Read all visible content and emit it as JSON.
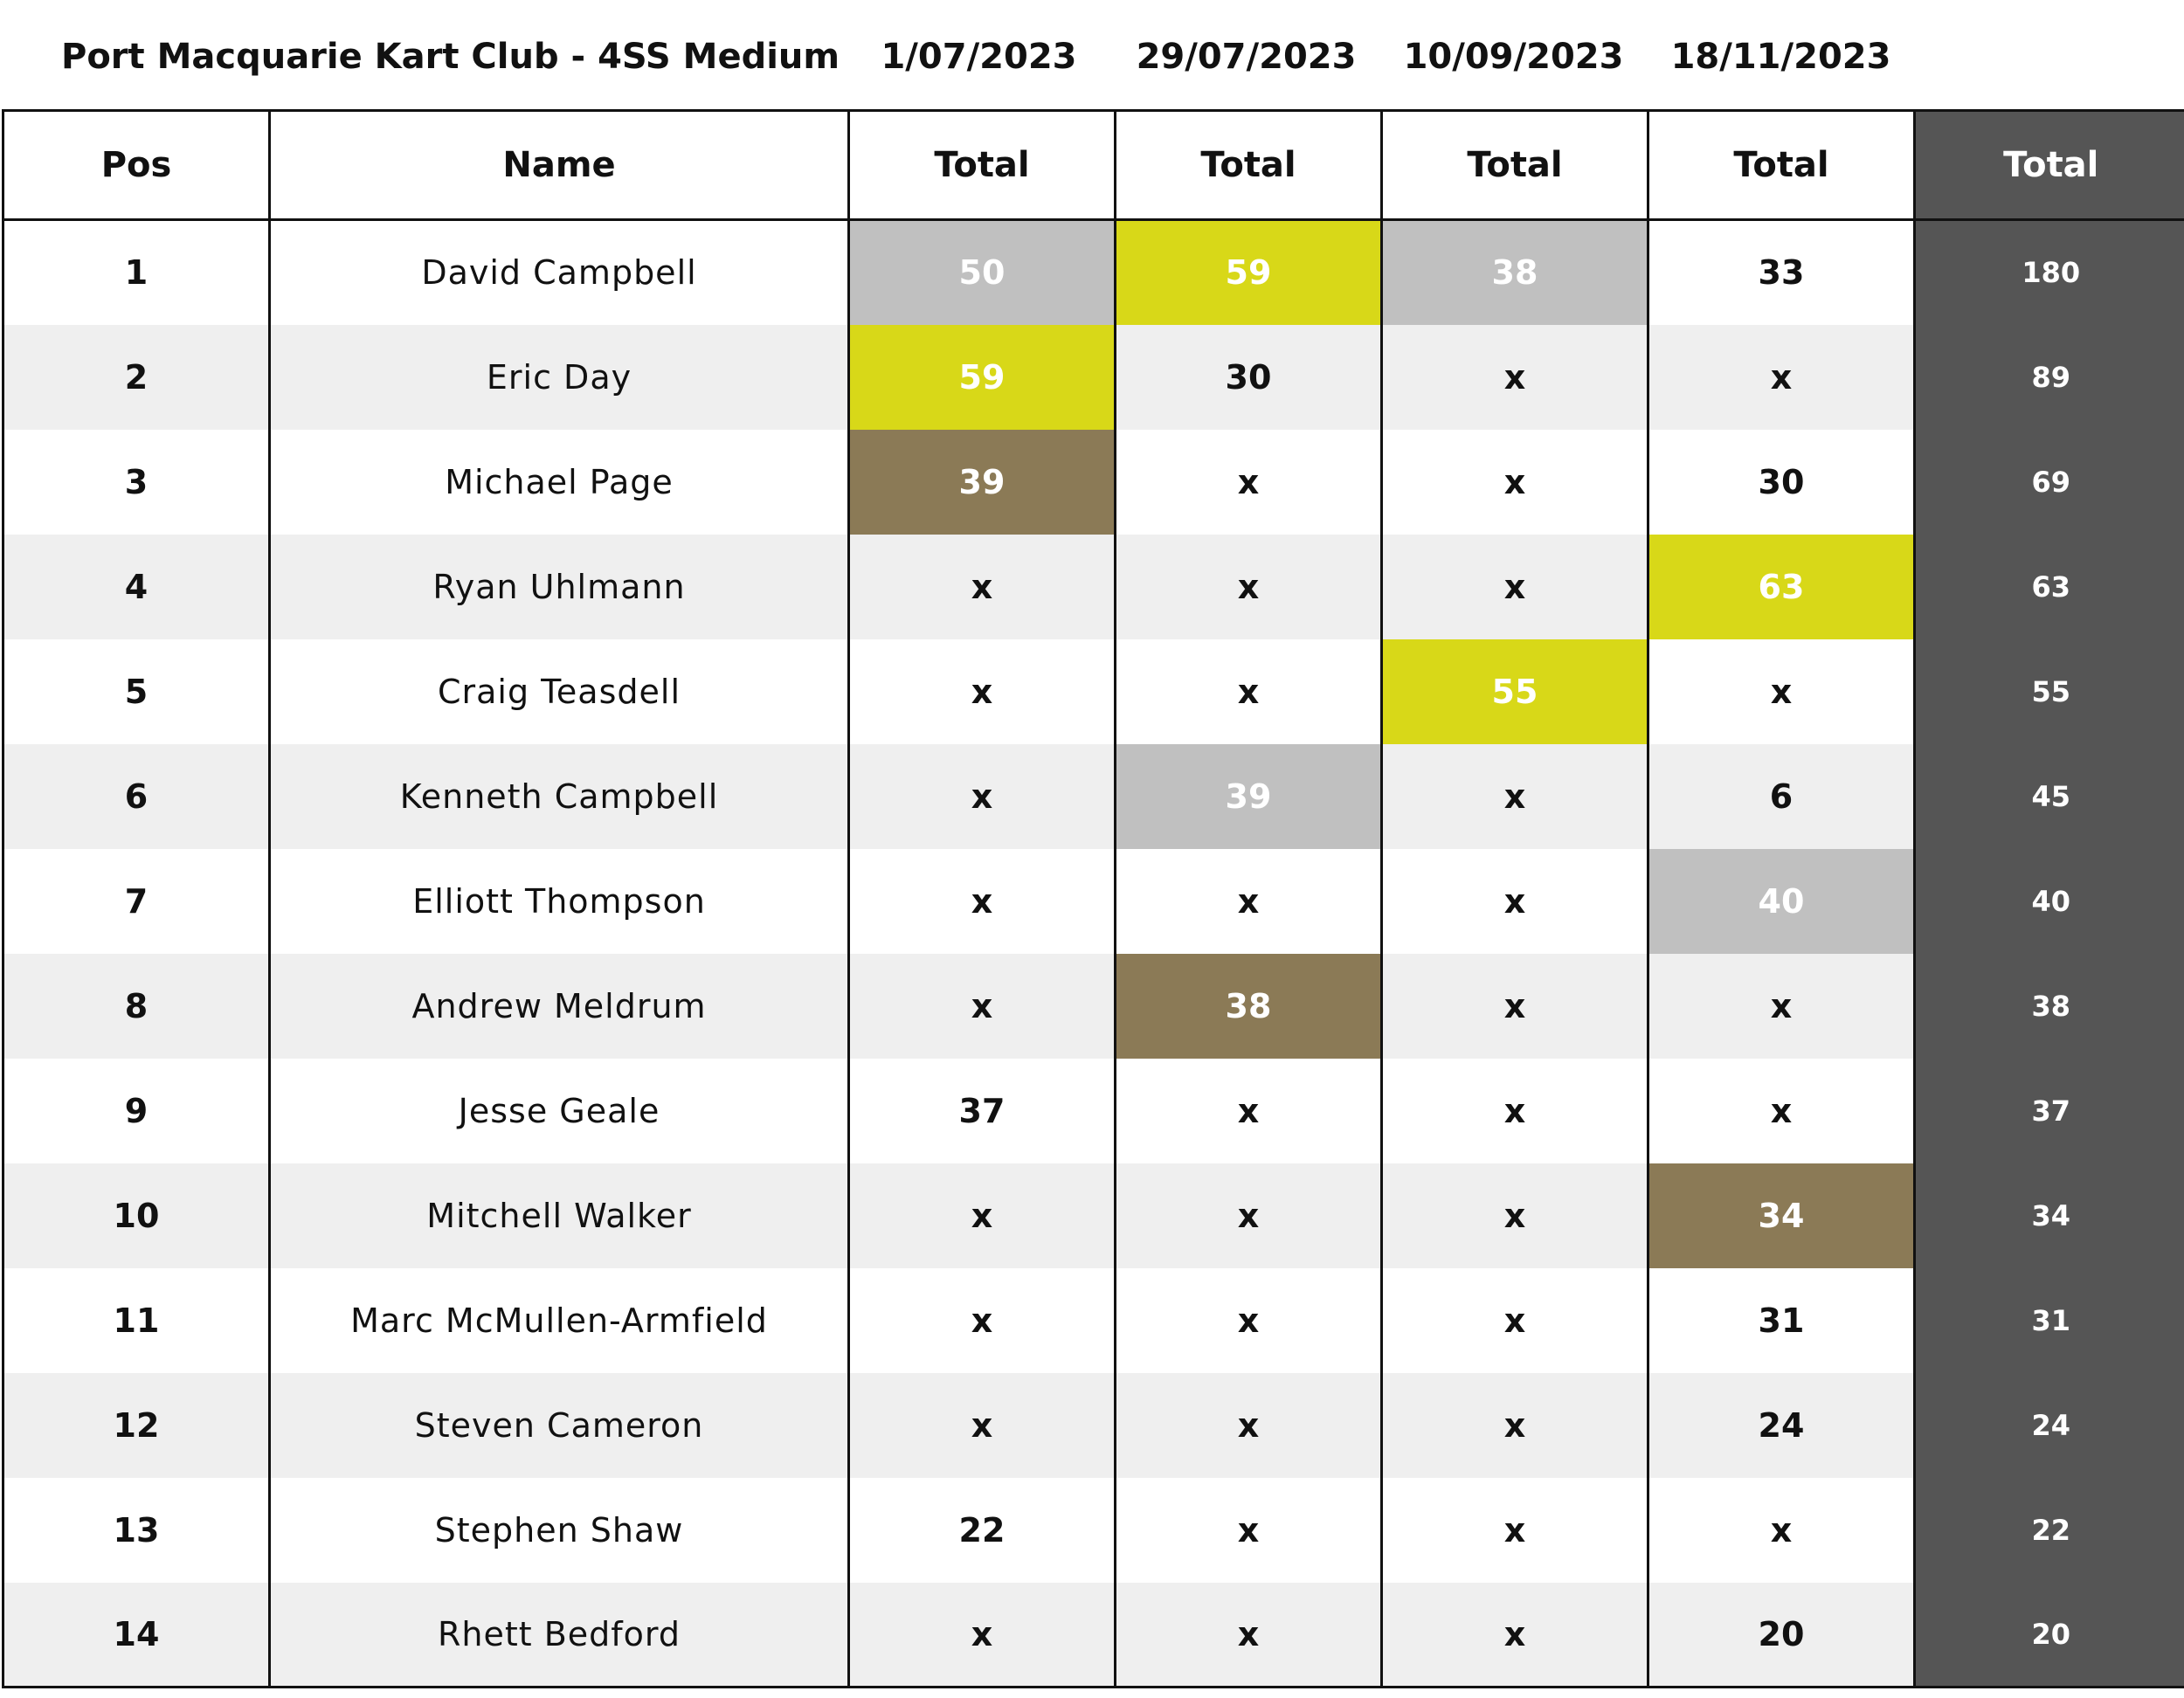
{
  "header": {
    "title": "Port Macquarie Kart Club - 4SS Medium",
    "dates": [
      "1/07/2023",
      "29/07/2023",
      "10/09/2023",
      "18/11/2023"
    ]
  },
  "columns": {
    "pos": "Pos",
    "name": "Name",
    "events": [
      "Total",
      "Total",
      "Total",
      "Total"
    ],
    "total": "Total"
  },
  "highlight_colors": {
    "gold": "#d8d818",
    "silver": "#c0c0c0",
    "bronze": "#8b7a56",
    "total_column": "#555555"
  },
  "rows": [
    {
      "pos": "1",
      "name": "David Campbell",
      "events": [
        "50",
        "59",
        "38",
        "33"
      ],
      "highlights": [
        "silver",
        "gold",
        "silver",
        ""
      ],
      "total": "180"
    },
    {
      "pos": "2",
      "name": "Eric Day",
      "events": [
        "59",
        "30",
        "x",
        "x"
      ],
      "highlights": [
        "gold",
        "",
        "",
        ""
      ],
      "total": "89"
    },
    {
      "pos": "3",
      "name": "Michael Page",
      "events": [
        "39",
        "x",
        "x",
        "30"
      ],
      "highlights": [
        "bronze",
        "",
        "",
        ""
      ],
      "total": "69"
    },
    {
      "pos": "4",
      "name": "Ryan Uhlmann",
      "events": [
        "x",
        "x",
        "x",
        "63"
      ],
      "highlights": [
        "",
        "",
        "",
        "gold"
      ],
      "total": "63"
    },
    {
      "pos": "5",
      "name": "Craig Teasdell",
      "events": [
        "x",
        "x",
        "55",
        "x"
      ],
      "highlights": [
        "",
        "",
        "gold",
        ""
      ],
      "total": "55"
    },
    {
      "pos": "6",
      "name": "Kenneth Campbell",
      "events": [
        "x",
        "39",
        "x",
        "6"
      ],
      "highlights": [
        "",
        "silver",
        "",
        ""
      ],
      "total": "45"
    },
    {
      "pos": "7",
      "name": "Elliott Thompson",
      "events": [
        "x",
        "x",
        "x",
        "40"
      ],
      "highlights": [
        "",
        "",
        "",
        "silver"
      ],
      "total": "40"
    },
    {
      "pos": "8",
      "name": "Andrew Meldrum",
      "events": [
        "x",
        "38",
        "x",
        "x"
      ],
      "highlights": [
        "",
        "bronze",
        "",
        ""
      ],
      "total": "38"
    },
    {
      "pos": "9",
      "name": "Jesse Geale",
      "events": [
        "37",
        "x",
        "x",
        "x"
      ],
      "highlights": [
        "",
        "",
        "",
        ""
      ],
      "total": "37"
    },
    {
      "pos": "10",
      "name": "Mitchell Walker",
      "events": [
        "x",
        "x",
        "x",
        "34"
      ],
      "highlights": [
        "",
        "",
        "",
        "bronze"
      ],
      "total": "34"
    },
    {
      "pos": "11",
      "name": "Marc McMullen-Armfield",
      "events": [
        "x",
        "x",
        "x",
        "31"
      ],
      "highlights": [
        "",
        "",
        "",
        ""
      ],
      "total": "31"
    },
    {
      "pos": "12",
      "name": "Steven Cameron",
      "events": [
        "x",
        "x",
        "x",
        "24"
      ],
      "highlights": [
        "",
        "",
        "",
        ""
      ],
      "total": "24"
    },
    {
      "pos": "13",
      "name": "Stephen Shaw",
      "events": [
        "22",
        "x",
        "x",
        "x"
      ],
      "highlights": [
        "",
        "",
        "",
        ""
      ],
      "total": "22"
    },
    {
      "pos": "14",
      "name": "Rhett Bedford",
      "events": [
        "x",
        "x",
        "x",
        "20"
      ],
      "highlights": [
        "",
        "",
        "",
        ""
      ],
      "total": "20"
    }
  ]
}
